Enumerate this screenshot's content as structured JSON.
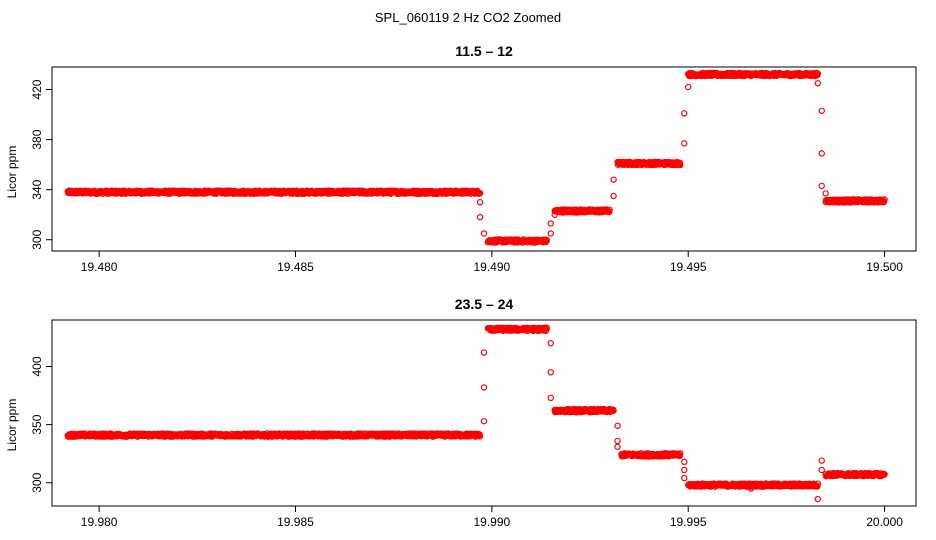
{
  "figure_title": "SPL_060119  2 Hz CO2 Zoomed",
  "chart_data": [
    {
      "type": "scatter",
      "title": "11.5 – 12",
      "xlabel": "",
      "ylabel": "Licor ppm",
      "xlim": [
        19.4788,
        19.5008
      ],
      "ylim": [
        291,
        438
      ],
      "x_ticks": [
        19.48,
        19.485,
        19.49,
        19.495,
        19.5
      ],
      "x_tick_labels": [
        "19.480",
        "19.485",
        "19.490",
        "19.495",
        "19.500"
      ],
      "y_ticks": [
        300,
        340,
        380,
        420
      ],
      "y_tick_labels": [
        "300",
        "340",
        "380",
        "420"
      ],
      "marker": "open-circle",
      "color": "#ff0000",
      "levels": [
        {
          "x_start": 19.4792,
          "x_end": 19.4897,
          "y": 338
        },
        {
          "x_start": 19.4899,
          "x_end": 19.4914,
          "y": 299
        },
        {
          "x_start": 19.4916,
          "x_end": 19.493,
          "y": 323
        },
        {
          "x_start": 19.4932,
          "x_end": 19.4948,
          "y": 361
        },
        {
          "x_start": 19.495,
          "x_end": 19.4983,
          "y": 432
        },
        {
          "x_start": 19.4985,
          "x_end": 19.5,
          "y": 331
        }
      ],
      "transition_points": [
        {
          "x": 19.4897,
          "y": 330
        },
        {
          "x": 19.4897,
          "y": 318
        },
        {
          "x": 19.4898,
          "y": 305
        },
        {
          "x": 19.4915,
          "x2": 0,
          "y": 305
        },
        {
          "x": 19.4915,
          "y": 313
        },
        {
          "x": 19.4916,
          "y": 320
        },
        {
          "x": 19.4931,
          "y": 335
        },
        {
          "x": 19.4931,
          "y": 348
        },
        {
          "x": 19.4949,
          "y": 377
        },
        {
          "x": 19.4949,
          "y": 401
        },
        {
          "x": 19.495,
          "y": 422
        },
        {
          "x": 19.4983,
          "y": 425
        },
        {
          "x": 19.4984,
          "y": 403
        },
        {
          "x": 19.4984,
          "y": 369
        },
        {
          "x": 19.4984,
          "y": 343
        },
        {
          "x": 19.4985,
          "y": 337
        }
      ]
    },
    {
      "type": "scatter",
      "title": "23.5 – 24",
      "xlabel": "",
      "ylabel": "Licor ppm",
      "xlim": [
        19.9788,
        20.0008
      ],
      "ylim": [
        280,
        440
      ],
      "x_ticks": [
        19.98,
        19.985,
        19.99,
        19.995,
        20.0
      ],
      "x_tick_labels": [
        "19.980",
        "19.985",
        "19.990",
        "19.995",
        "20.000"
      ],
      "y_ticks": [
        300,
        350,
        400
      ],
      "y_tick_labels": [
        "300",
        "350",
        "400"
      ],
      "marker": "open-circle",
      "color": "#ff0000",
      "levels": [
        {
          "x_start": 19.9792,
          "x_end": 19.9897,
          "y": 341
        },
        {
          "x_start": 19.9899,
          "x_end": 19.9914,
          "y": 432
        },
        {
          "x_start": 19.9916,
          "x_end": 19.9931,
          "y": 362
        },
        {
          "x_start": 19.9933,
          "x_end": 19.9948,
          "y": 324
        },
        {
          "x_start": 19.995,
          "x_end": 19.9983,
          "y": 298
        },
        {
          "x_start": 19.9985,
          "x_end": 20.0,
          "y": 307
        }
      ],
      "transition_points": [
        {
          "x": 19.9898,
          "y": 353
        },
        {
          "x": 19.9898,
          "y": 382
        },
        {
          "x": 19.9898,
          "y": 412
        },
        {
          "x": 19.9915,
          "y": 420
        },
        {
          "x": 19.9915,
          "y": 395
        },
        {
          "x": 19.9915,
          "y": 373
        },
        {
          "x": 19.9932,
          "y": 349
        },
        {
          "x": 19.9932,
          "y": 336
        },
        {
          "x": 19.9932,
          "y": 331
        },
        {
          "x": 19.9949,
          "y": 318
        },
        {
          "x": 19.9949,
          "y": 311
        },
        {
          "x": 19.9949,
          "y": 304
        },
        {
          "x": 19.9966,
          "y": 295
        },
        {
          "x": 19.9983,
          "y": 286
        },
        {
          "x": 19.9984,
          "y": 319
        },
        {
          "x": 19.9984,
          "y": 311
        }
      ]
    }
  ]
}
